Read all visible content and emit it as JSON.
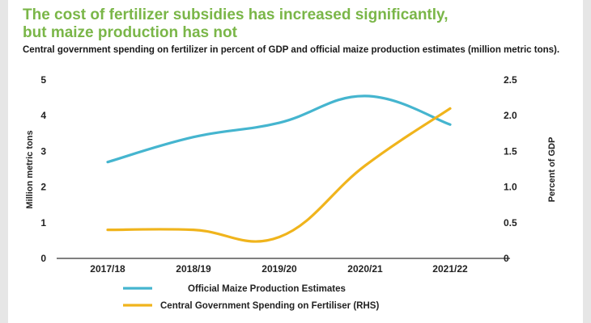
{
  "title": "The cost of fertilizer subsidies has increased significantly, but maize production has not",
  "subtitle": "Central government spending on fertilizer in percent of GDP and official maize production estimates (million metric tons).",
  "colors": {
    "title": "#7ab648",
    "maize": "#45b5cf",
    "fertilizer": "#f0b41c"
  },
  "chart_data": {
    "type": "line",
    "title": "The cost of fertilizer subsidies has increased significantly, but maize production has not",
    "categories": [
      "2017/18",
      "2018/19",
      "2019/20",
      "2020/21",
      "2021/22"
    ],
    "ylabel": "Million metric tons",
    "y2label": "Percent of GDP",
    "ylim": [
      0,
      5
    ],
    "y2lim": [
      0,
      2.5
    ],
    "yticks": [
      "0",
      "1",
      "2",
      "3",
      "4",
      "5"
    ],
    "y2ticks": [
      "0",
      "0.5",
      "1.0",
      "1.5",
      "2.0",
      "2.5"
    ],
    "series": [
      {
        "name": "Official Maize Production Estimates",
        "axis": "left",
        "color": "#45b5cf",
        "values": [
          2.7,
          3.4,
          3.8,
          4.55,
          3.75
        ]
      },
      {
        "name": "Central Government Spending on Fertiliser (RHS)",
        "axis": "right",
        "color": "#f0b41c",
        "values": [
          0.4,
          0.4,
          0.3,
          1.3,
          2.1
        ]
      }
    ],
    "legend_position": "bottom"
  }
}
